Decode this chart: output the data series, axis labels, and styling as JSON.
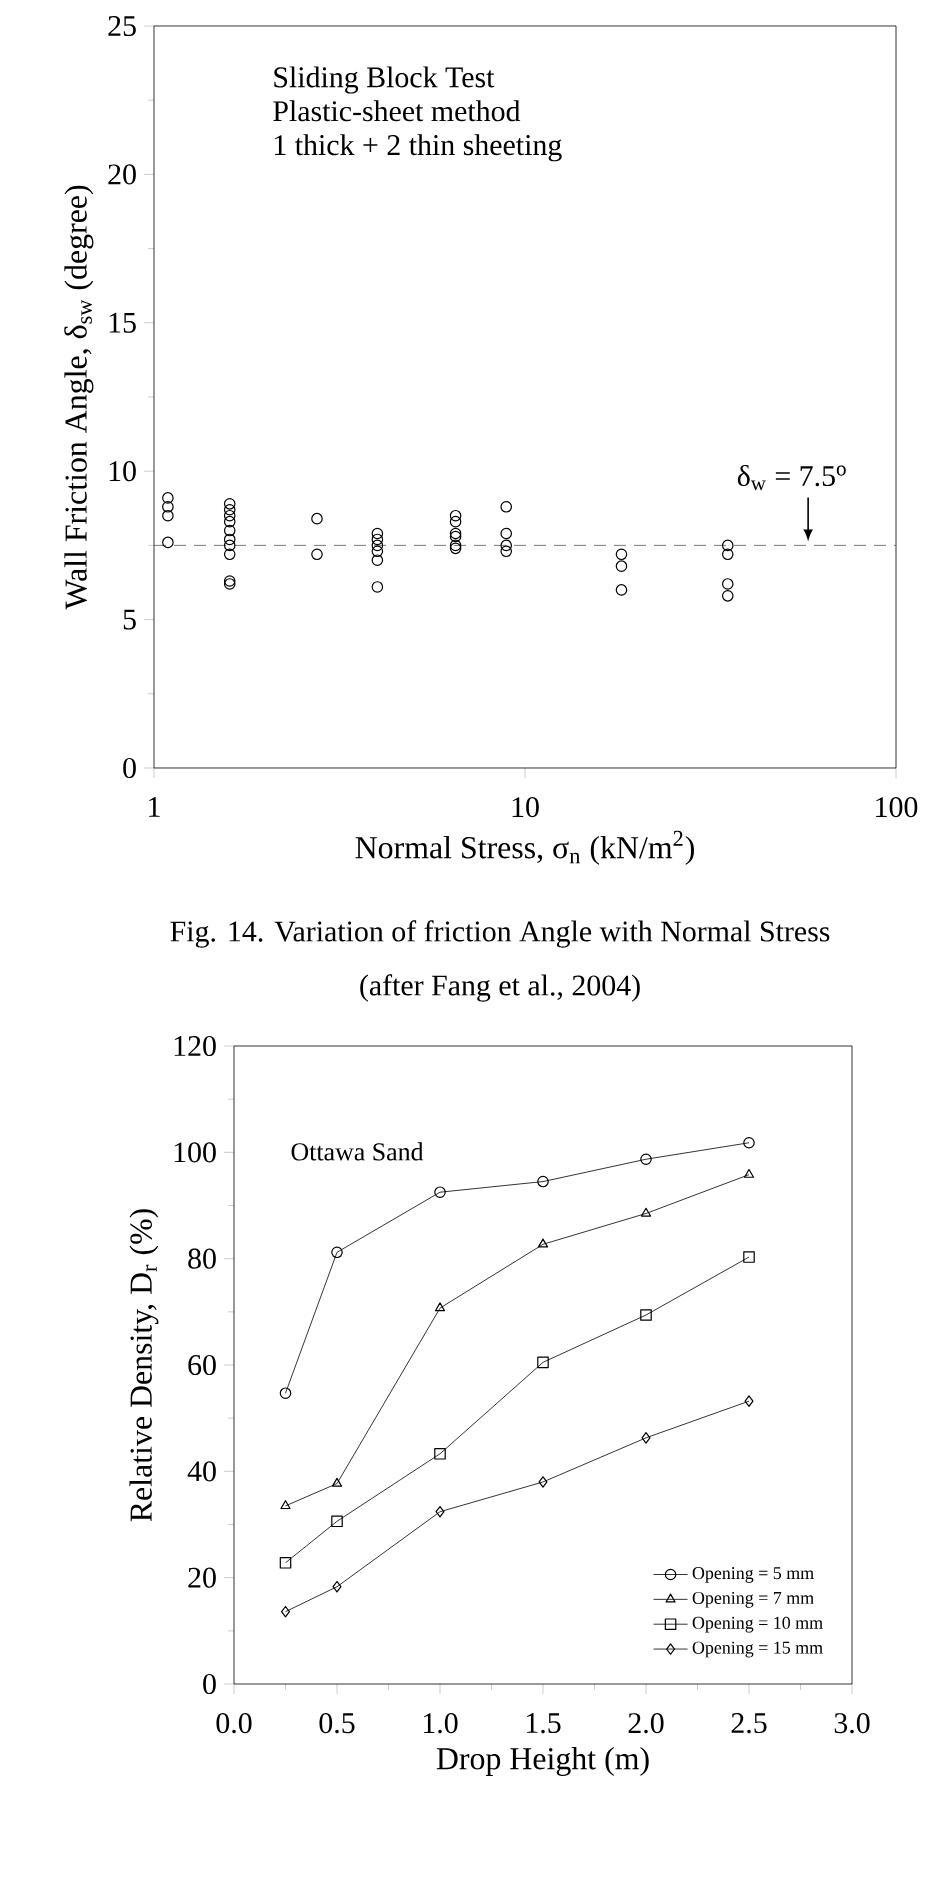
{
  "chart_data": [
    {
      "type": "scatter",
      "title": "Fig. 14. Variation of friction Angle with Normal Stress",
      "subtitle": "(after Fang et al., 2004)",
      "xlabel": "Normal Stress, σ$_{n}$ (kN/m$^{2}$)",
      "ylabel": "Wall Friction Angle, δ$_{sw}$ (degree)",
      "annotations": [
        "Sliding Block Test",
        "Plastic-sheet method",
        "1 thick + 2 thin sheeting"
      ],
      "log": "x",
      "xlim": [
        1,
        100
      ],
      "xticks": [
        1,
        10,
        100
      ],
      "ylim": [
        0,
        25
      ],
      "yticks": [
        0,
        5,
        10,
        15,
        20,
        25
      ],
      "marker": "circle",
      "legend": false,
      "ref_lines": [
        {
          "axis": "y",
          "value": 7.5,
          "label": "δ$_{w}$ = 7.5$^{o}$",
          "line_style": "dashed",
          "color": "#555555"
        }
      ],
      "series": [
        {
          "color": "#000000",
          "x": [
            1.09,
            1.09,
            1.09,
            1.09,
            1.6,
            1.6,
            1.6,
            1.6,
            1.6,
            1.6,
            1.6,
            1.6,
            1.6,
            1.6,
            2.75,
            2.75,
            4.0,
            4.0,
            4.0,
            4.0,
            4.0,
            4.0,
            6.5,
            6.5,
            6.5,
            6.5,
            6.5,
            6.5,
            8.9,
            8.9,
            8.9,
            8.9,
            18.2,
            18.2,
            18.2,
            35.2,
            35.2,
            35.2,
            35.2
          ],
          "values": [
            9.1,
            8.8,
            8.5,
            7.6,
            8.9,
            8.7,
            8.5,
            8.3,
            8.0,
            7.7,
            7.5,
            7.2,
            6.3,
            6.2,
            8.4,
            7.2,
            7.9,
            7.7,
            7.5,
            7.3,
            7.0,
            6.1,
            8.5,
            8.3,
            7.9,
            7.8,
            7.5,
            7.4,
            8.8,
            7.9,
            7.5,
            7.3,
            7.2,
            6.8,
            6.0,
            7.5,
            7.2,
            6.2,
            5.8
          ]
        }
      ]
    },
    {
      "type": "line",
      "xlabel": "Drop Height (m)",
      "ylabel": "Relative Density, D$_{r}$ (%)",
      "annotations": [
        "Ottawa Sand"
      ],
      "xlim": [
        0,
        3
      ],
      "xticks": [
        {
          "value": 0,
          "label": "0.0"
        },
        {
          "value": 0.5,
          "label": "0.5"
        },
        {
          "value": 1,
          "label": "1.0"
        },
        {
          "value": 1.5,
          "label": "1.5"
        },
        {
          "value": 2,
          "label": "2.0"
        },
        {
          "value": 2.5,
          "label": "2.5"
        },
        {
          "value": 3,
          "label": "3.0"
        }
      ],
      "ylim": [
        0,
        120
      ],
      "yticks": [
        0,
        20,
        40,
        60,
        80,
        100,
        120
      ],
      "legend": "bottom right",
      "x": [
        0.25,
        0.5,
        1.0,
        1.5,
        2.0,
        2.5
      ],
      "series": [
        {
          "name": "Opening = 5 mm",
          "color": "#000000",
          "marker": "circle",
          "values": [
            54.7,
            81.2,
            92.5,
            94.5,
            98.7,
            101.8
          ]
        },
        {
          "name": "Opening = 7 mm",
          "color": "#000000",
          "marker": "triangle",
          "values": [
            33.5,
            37.7,
            70.7,
            82.7,
            88.5,
            95.8
          ]
        },
        {
          "name": "Opening = 10 mm",
          "color": "#000000",
          "marker": "square",
          "values": [
            22.8,
            30.6,
            43.3,
            60.5,
            69.4,
            80.3
          ]
        },
        {
          "name": "Opening = 15 mm",
          "color": "#000000",
          "marker": "diamond",
          "values": [
            13.6,
            18.3,
            32.4,
            38.0,
            46.3,
            53.2
          ]
        }
      ]
    }
  ]
}
